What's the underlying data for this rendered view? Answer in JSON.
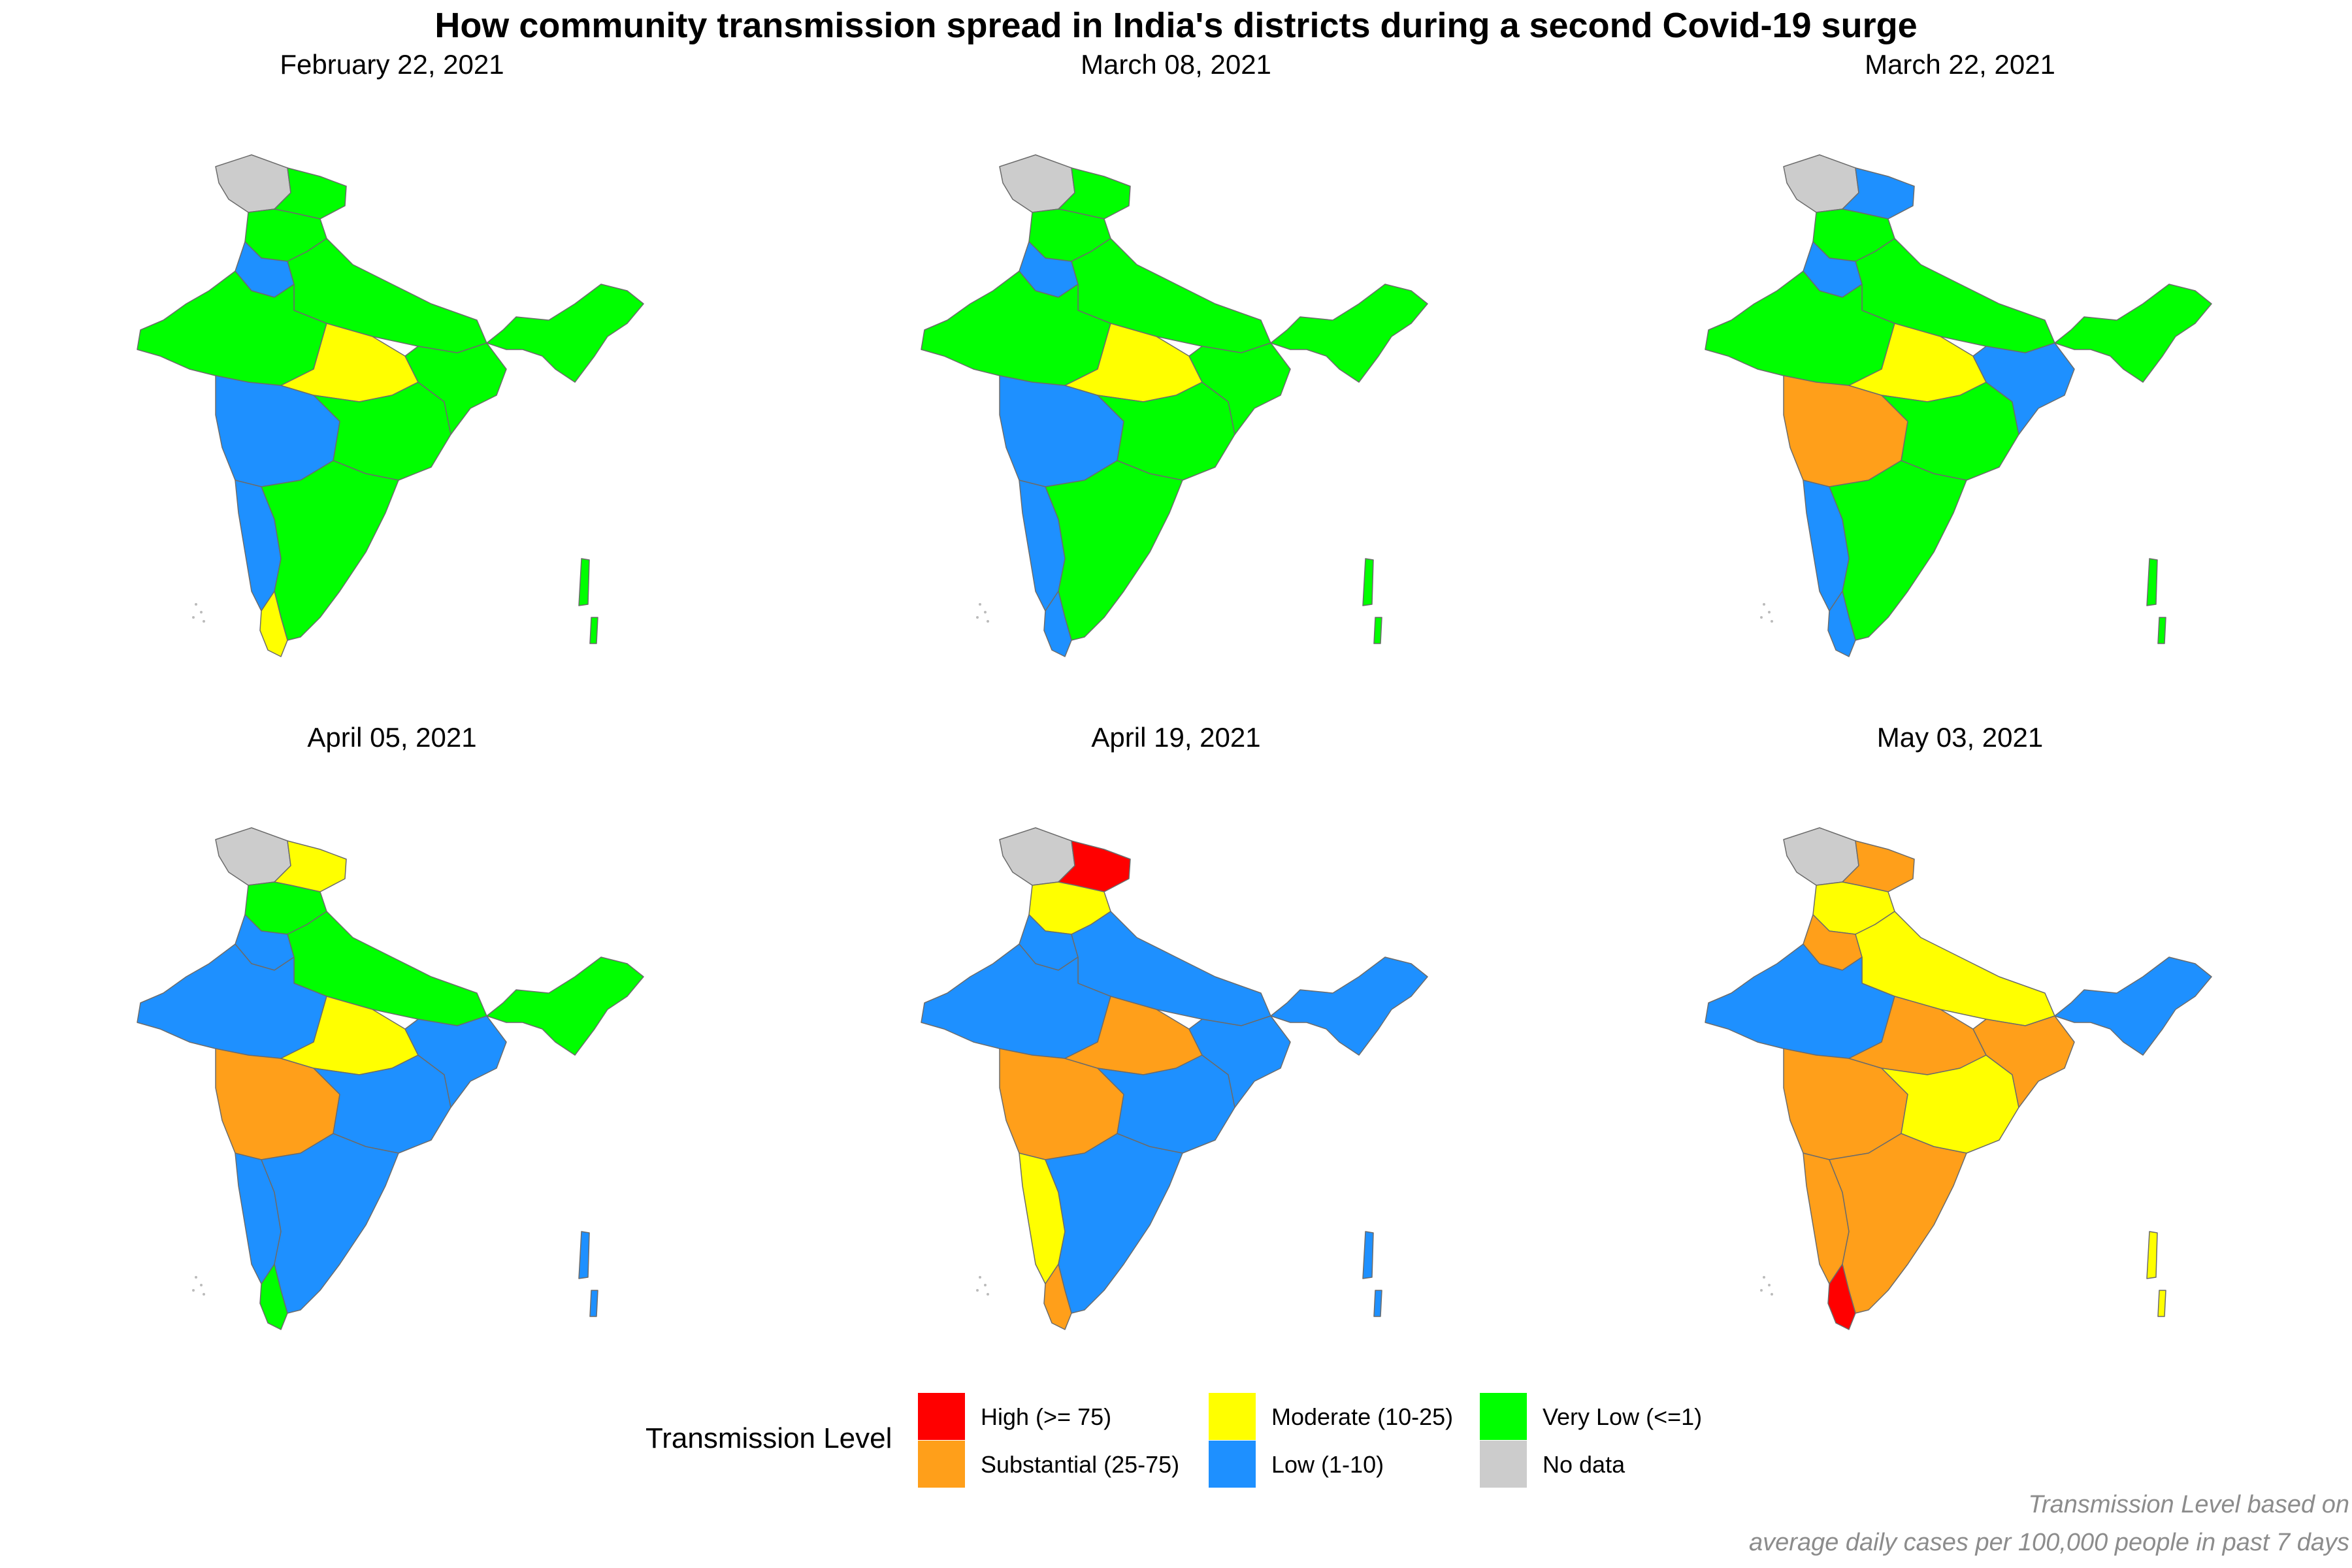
{
  "title": "How community transmission spread in India's districts during a second Covid-19 surge",
  "panels": [
    {
      "date": "February 22, 2021",
      "fills": {
        "jk": "no_data",
        "ladakh": "very_low",
        "north": "very_low",
        "upper_west": "low",
        "gangetic": "very_low",
        "west": "very_low",
        "maharashtra": "low",
        "mp_south": "moderate",
        "central": "very_low",
        "east": "very_low",
        "northeast": "very_low",
        "south_west": "low",
        "south": "very_low",
        "kerala": "moderate",
        "islands": "very_low"
      }
    },
    {
      "date": "March 08, 2021",
      "fills": {
        "jk": "no_data",
        "ladakh": "very_low",
        "north": "very_low",
        "upper_west": "low",
        "gangetic": "very_low",
        "west": "very_low",
        "maharashtra": "low",
        "mp_south": "moderate",
        "central": "very_low",
        "east": "very_low",
        "northeast": "very_low",
        "south_west": "low",
        "south": "very_low",
        "kerala": "low",
        "islands": "very_low"
      }
    },
    {
      "date": "March 22, 2021",
      "fills": {
        "jk": "no_data",
        "ladakh": "low",
        "north": "very_low",
        "upper_west": "low",
        "gangetic": "very_low",
        "west": "very_low",
        "maharashtra": "substantial",
        "mp_south": "moderate",
        "central": "very_low",
        "east": "low",
        "northeast": "very_low",
        "south_west": "low",
        "south": "very_low",
        "kerala": "low",
        "islands": "very_low"
      }
    },
    {
      "date": "April 05, 2021",
      "fills": {
        "jk": "no_data",
        "ladakh": "moderate",
        "north": "very_low",
        "upper_west": "low",
        "gangetic": "very_low",
        "west": "low",
        "maharashtra": "substantial",
        "mp_south": "moderate",
        "central": "low",
        "east": "low",
        "northeast": "very_low",
        "south_west": "low",
        "south": "low",
        "kerala": "very_low",
        "islands": "low"
      }
    },
    {
      "date": "April 19, 2021",
      "fills": {
        "jk": "no_data",
        "ladakh": "high",
        "north": "moderate",
        "upper_west": "low",
        "gangetic": "low",
        "west": "low",
        "maharashtra": "substantial",
        "mp_south": "substantial",
        "central": "low",
        "east": "low",
        "northeast": "low",
        "south_west": "moderate",
        "south": "low",
        "kerala": "substantial",
        "islands": "low"
      }
    },
    {
      "date": "May 03, 2021",
      "fills": {
        "jk": "no_data",
        "ladakh": "substantial",
        "north": "moderate",
        "upper_west": "substantial",
        "gangetic": "moderate",
        "west": "low",
        "maharashtra": "substantial",
        "mp_south": "substantial",
        "central": "moderate",
        "east": "substantial",
        "northeast": "low",
        "south_west": "substantial",
        "south": "substantial",
        "kerala": "high",
        "islands": "moderate"
      }
    }
  ],
  "legend": {
    "title": "Transmission Level",
    "items": [
      {
        "key": "high",
        "label": "High (>= 75)",
        "color": "#ff0000"
      },
      {
        "key": "substantial",
        "label": "Substantial (25-75)",
        "color": "#ff9f1a"
      },
      {
        "key": "moderate",
        "label": "Moderate (10-25)",
        "color": "#ffff00"
      },
      {
        "key": "low",
        "label": "Low (1-10)",
        "color": "#1e90ff"
      },
      {
        "key": "very_low",
        "label": "Very Low (<=1)",
        "color": "#00ff00"
      },
      {
        "key": "no_data",
        "label": "No data",
        "color": "#cccccc"
      }
    ]
  },
  "caption": {
    "line1": "Transmission Level based on",
    "line2": "average daily cases per 100,000 people in past 7 days"
  }
}
